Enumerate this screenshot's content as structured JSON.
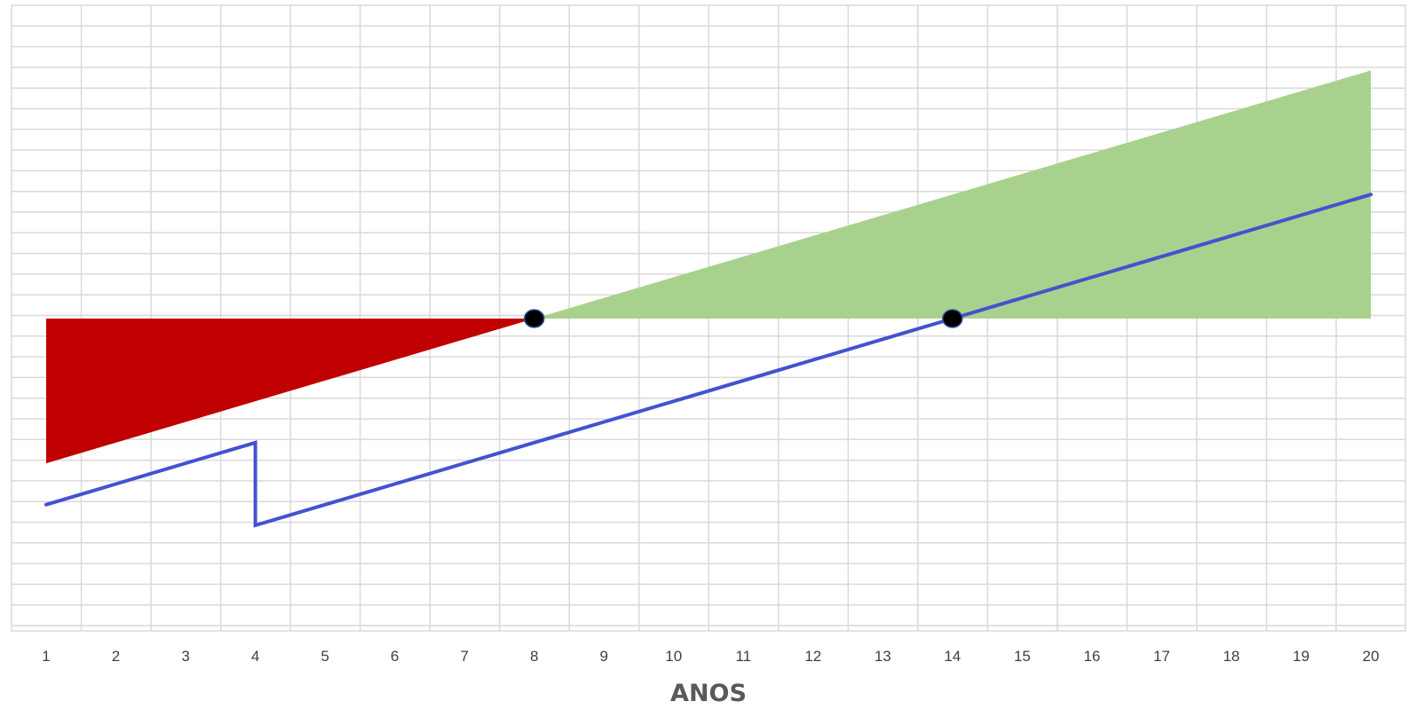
{
  "chart_data": {
    "type": "area",
    "xlabel": "ANOS",
    "categories": [
      "1",
      "2",
      "3",
      "4",
      "5",
      "6",
      "7",
      "8",
      "9",
      "10",
      "11",
      "12",
      "13",
      "14",
      "15",
      "16",
      "17",
      "18",
      "19",
      "20"
    ],
    "x": [
      1,
      2,
      3,
      4,
      5,
      6,
      7,
      8,
      9,
      10,
      11,
      12,
      13,
      14,
      15,
      16,
      17,
      18,
      19,
      20
    ],
    "ylim": [
      -15,
      15
    ],
    "baseline": 0,
    "series": [
      {
        "kind": "area",
        "color": "#C00000",
        "points": [
          [
            1,
            -7.0
          ],
          [
            8,
            0
          ]
        ]
      },
      {
        "kind": "area",
        "color": "#A9D18E",
        "points": [
          [
            8,
            0
          ],
          [
            20,
            12.0
          ]
        ]
      },
      {
        "kind": "line",
        "color": "#4452D0",
        "points": [
          [
            1,
            -9.0
          ],
          [
            4,
            -6.0
          ],
          [
            4,
            -10.0
          ],
          [
            14,
            0
          ],
          [
            20,
            6.0
          ]
        ]
      }
    ],
    "markers": [
      {
        "x": 8,
        "y": 0,
        "color": "#000000"
      },
      {
        "x": 14,
        "y": 0,
        "color": "#000000"
      }
    ],
    "grid": true,
    "legend": "none"
  }
}
